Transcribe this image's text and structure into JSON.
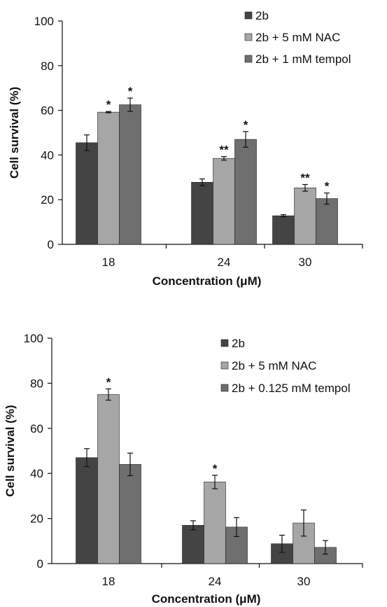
{
  "chart_data": [
    {
      "type": "bar",
      "categories": [
        "18",
        "24",
        "30"
      ],
      "xlabel": "Concentration (μM)",
      "ylabel": "Cell survival (%)",
      "ylim": [
        0,
        100
      ],
      "yticks": [
        "0",
        "20",
        "40",
        "60",
        "80",
        "100"
      ],
      "legend_position": "top-right",
      "series": [
        {
          "name": "2b",
          "color": "#444444",
          "values": [
            45.5,
            27.8,
            12.8
          ],
          "errors": [
            3.5,
            1.5,
            0.5
          ],
          "significance": [
            "",
            "",
            ""
          ]
        },
        {
          "name": "2b + 5 mM NAC",
          "color": "#a6a6a6",
          "values": [
            59.2,
            38.5,
            25.3
          ],
          "errors": [
            0.3,
            0.8,
            1.5
          ],
          "significance": [
            "*",
            "**",
            "**"
          ]
        },
        {
          "name": "2b + 1 mM tempol",
          "color": "#6f6f6f",
          "values": [
            62.5,
            47.0,
            20.5
          ],
          "errors": [
            3.0,
            3.5,
            2.5
          ],
          "significance": [
            "*",
            "*",
            "*"
          ]
        }
      ]
    },
    {
      "type": "bar",
      "categories": [
        "18",
        "24",
        "30"
      ],
      "xlabel": "Concentration (μM)",
      "ylabel": "Cell survival (%)",
      "ylim": [
        0,
        100
      ],
      "yticks": [
        "0",
        "20",
        "40",
        "60",
        "80",
        "100"
      ],
      "legend_position": "top-right",
      "series": [
        {
          "name": "2b",
          "color": "#444444",
          "values": [
            47.0,
            17.0,
            8.8
          ],
          "errors": [
            4.0,
            2.0,
            3.8
          ],
          "significance": [
            "",
            "",
            ""
          ]
        },
        {
          "name": "2b + 5 mM NAC",
          "color": "#a6a6a6",
          "values": [
            75.0,
            36.2,
            18.0
          ],
          "errors": [
            2.5,
            3.0,
            5.8
          ],
          "significance": [
            "*",
            "*",
            ""
          ]
        },
        {
          "name": "2b + 0.125 mM tempol",
          "color": "#6f6f6f",
          "values": [
            44.0,
            16.2,
            7.2
          ],
          "errors": [
            5.0,
            4.2,
            3.0
          ],
          "significance": [
            "",
            "",
            ""
          ]
        }
      ]
    }
  ]
}
